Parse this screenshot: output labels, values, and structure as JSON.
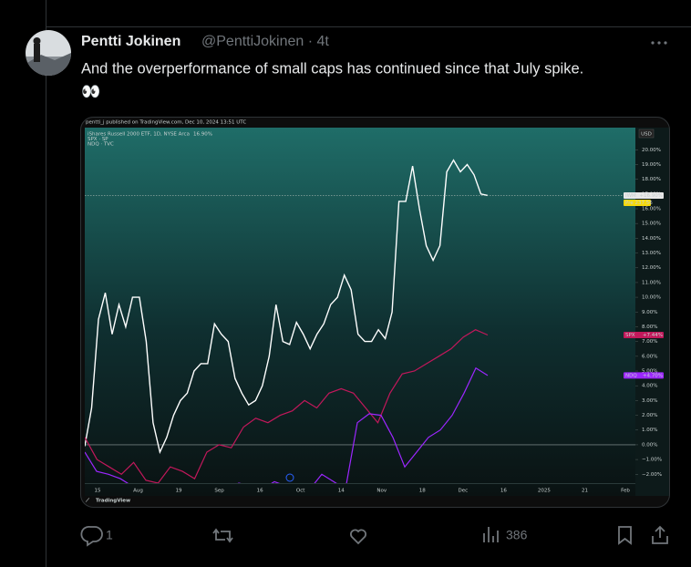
{
  "post": {
    "author": "Pentti Jokinen",
    "meta": "@PenttiJokinen · 4t",
    "text": "And the overperformance of small caps has continued since that July spike.",
    "emoji": "👀",
    "replies": 1,
    "views": 386
  },
  "chart_data": {
    "type": "line",
    "header": "pentti_j published on TradingView.com, Dec 10, 2024 13:51 UTC",
    "currency": "USD",
    "footer": "TradingView",
    "pre_label": "Pre 237.56",
    "zero_line": true,
    "x_labels": [
      "15",
      "Aug",
      "19",
      "Sep",
      "16",
      "Oct",
      "14",
      "Nov",
      "18",
      "Dec",
      "16",
      "2025",
      "21",
      "Feb"
    ],
    "ylim": [
      -2.6,
      21.5
    ],
    "yticks": [
      {
        "value": 20,
        "label": "20.00%"
      },
      {
        "value": 19,
        "label": "19.00%"
      },
      {
        "value": 18,
        "label": "18.00%"
      },
      {
        "value": 17,
        "label": "17.00%"
      },
      {
        "value": 16,
        "label": "16.00%"
      },
      {
        "value": 15,
        "label": "15.00%"
      },
      {
        "value": 14,
        "label": "14.00%"
      },
      {
        "value": 13,
        "label": "13.00%"
      },
      {
        "value": 12,
        "label": "12.00%"
      },
      {
        "value": 11,
        "label": "11.00%"
      },
      {
        "value": 10,
        "label": "10.00%"
      },
      {
        "value": 9,
        "label": "9.00%"
      },
      {
        "value": 8,
        "label": "8.00%"
      },
      {
        "value": 7,
        "label": "7.00%"
      },
      {
        "value": 6,
        "label": "6.00%"
      },
      {
        "value": 5,
        "label": "5.00%"
      },
      {
        "value": 4,
        "label": "4.00%"
      },
      {
        "value": 3,
        "label": "3.00%"
      },
      {
        "value": 2,
        "label": "2.00%"
      },
      {
        "value": 1,
        "label": "1.00%"
      },
      {
        "value": 0,
        "label": "0.00%"
      },
      {
        "value": -1,
        "label": "−1.00%"
      },
      {
        "value": -2,
        "label": "−2.00%"
      }
    ],
    "series": [
      {
        "name": "iShares Russell 2000 ETF, 1D, NYSE Arca",
        "legend_value": "16.90%",
        "tag": "IWM",
        "last_label": "+16.90%",
        "color": "#ffffff",
        "values": [
          -0.1,
          2.5,
          8.5,
          10.3,
          7.5,
          9.5,
          8.0,
          10.0,
          10.0,
          7.0,
          1.5,
          -0.5,
          0.5,
          2.0,
          3.0,
          3.5,
          5.0,
          5.5,
          5.5,
          8.2,
          7.5,
          7.0,
          4.5,
          3.5,
          2.7,
          3.0,
          4.0,
          6.0,
          9.5,
          7.0,
          6.8,
          8.3,
          7.5,
          6.5,
          7.5,
          8.2,
          9.5,
          10.0,
          11.5,
          10.5,
          7.5,
          7.0,
          7.0,
          7.8,
          7.2,
          9.0,
          16.5,
          16.5,
          18.9,
          16.0,
          13.5,
          12.5,
          13.5,
          18.5,
          19.3,
          18.5,
          19.0,
          18.3,
          17.0,
          16.9
        ]
      },
      {
        "name": "SPX · SP",
        "tag": "SPX",
        "last_label": "+7.44%",
        "color": "#c2185b",
        "values": [
          0.5,
          -1.0,
          -1.5,
          -2.0,
          -1.2,
          -2.4,
          -2.6,
          -1.5,
          -1.8,
          -2.3,
          -0.5,
          0.0,
          -0.2,
          1.2,
          1.8,
          1.5,
          2.0,
          2.3,
          3.0,
          2.5,
          3.5,
          3.8,
          3.5,
          2.5,
          1.5,
          3.5,
          4.8,
          5.0,
          5.5,
          6.0,
          6.5,
          7.3,
          7.8,
          7.44
        ]
      },
      {
        "name": "NDQ · TVC",
        "tag": "NDQ",
        "last_label": "+4.70%",
        "color": "#9c27ff",
        "values": [
          -0.5,
          -1.8,
          -2.0,
          -2.3,
          -2.8,
          -3.2,
          -3.0,
          -3.5,
          -3.0,
          -3.2,
          -2.8,
          -3.5,
          -3.0,
          -2.6,
          -2.8,
          -3.0,
          -2.5,
          -2.8,
          -3.5,
          -3.0,
          -2.0,
          -2.5,
          -3.0,
          1.5,
          2.1,
          2.0,
          0.5,
          -1.5,
          -0.5,
          0.5,
          1.0,
          2.0,
          3.5,
          5.2,
          4.7
        ]
      }
    ]
  }
}
